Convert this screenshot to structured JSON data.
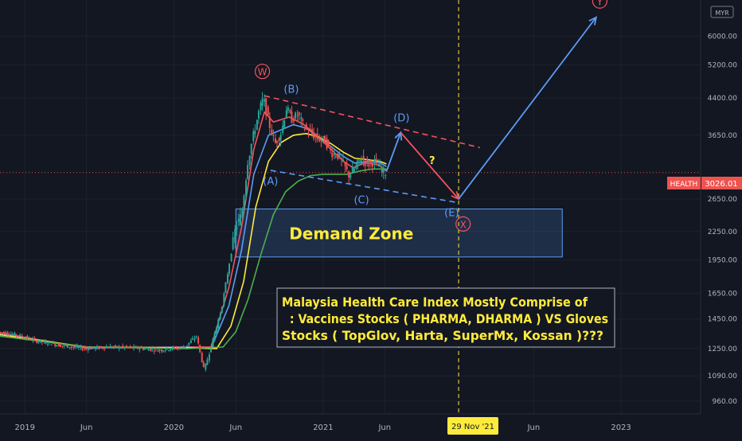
{
  "chart_data": {
    "type": "candlestick",
    "title": "",
    "currency_badge": "MYR",
    "symbol": "HEALTH",
    "last_price": "3026.01",
    "last_value": 3026.01,
    "y_scale": "log",
    "ylim": [
      900,
      7200
    ],
    "y_ticks": [
      {
        "value": 6000,
        "label": "6000.00"
      },
      {
        "value": 5200,
        "label": "5200.00"
      },
      {
        "value": 4400,
        "label": "4400.00"
      },
      {
        "value": 3650,
        "label": "3650.00"
      },
      {
        "value": 2650,
        "label": "2650.00"
      },
      {
        "value": 2250,
        "label": "2250.00"
      },
      {
        "value": 1950,
        "label": "1950.00"
      },
      {
        "value": 1650,
        "label": "1650.00"
      },
      {
        "value": 1450,
        "label": "1450.00"
      },
      {
        "value": 1250,
        "label": "1250.00"
      },
      {
        "value": 1090,
        "label": "1090.00"
      },
      {
        "value": 960,
        "label": "960.00"
      }
    ],
    "xlim": [
      "2018-11-01",
      "2023-07-15"
    ],
    "x_ticks": [
      {
        "date": "2019-01-01",
        "label": "2019"
      },
      {
        "date": "2019-06-01",
        "label": "Jun"
      },
      {
        "date": "2020-01-01",
        "label": "2020"
      },
      {
        "date": "2020-06-01",
        "label": "Jun"
      },
      {
        "date": "2021-01-01",
        "label": "2021"
      },
      {
        "date": "2021-06-01",
        "label": "Jun"
      },
      {
        "date": "2022-06-01",
        "label": "Jun"
      },
      {
        "date": "2023-01-01",
        "label": "2023"
      }
    ],
    "crosshair": {
      "date": "2021-11-29",
      "label": "29 Nov '21"
    },
    "price_path": [
      [
        "2018-11-01",
        1360
      ],
      [
        "2018-12-15",
        1340
      ],
      [
        "2019-02-01",
        1300
      ],
      [
        "2019-04-01",
        1270
      ],
      [
        "2019-06-01",
        1250
      ],
      [
        "2019-08-01",
        1260
      ],
      [
        "2019-10-01",
        1255
      ],
      [
        "2019-12-01",
        1240
      ],
      [
        "2020-02-01",
        1260
      ],
      [
        "2020-03-01",
        1330
      ],
      [
        "2020-03-20",
        1120
      ],
      [
        "2020-04-10",
        1300
      ],
      [
        "2020-05-01",
        1520
      ],
      [
        "2020-05-20",
        1900
      ],
      [
        "2020-06-05",
        2300
      ],
      [
        "2020-06-20",
        2450
      ],
      [
        "2020-07-05",
        3200
      ],
      [
        "2020-07-20",
        3700
      ],
      [
        "2020-08-01",
        4100
      ],
      [
        "2020-08-12",
        4400
      ],
      [
        "2020-08-25",
        3900
      ],
      [
        "2020-09-10",
        3500
      ],
      [
        "2020-09-25",
        3700
      ],
      [
        "2020-10-08",
        4200
      ],
      [
        "2020-10-20",
        3950
      ],
      [
        "2020-11-05",
        4050
      ],
      [
        "2020-11-20",
        3800
      ],
      [
        "2020-12-05",
        3700
      ],
      [
        "2020-12-20",
        3600
      ],
      [
        "2021-01-10",
        3550
      ],
      [
        "2021-01-25",
        3350
      ],
      [
        "2021-02-10",
        3300
      ],
      [
        "2021-02-25",
        3150
      ],
      [
        "2021-03-10",
        2980
      ],
      [
        "2021-03-25",
        3100
      ],
      [
        "2021-04-10",
        3250
      ],
      [
        "2021-04-25",
        3150
      ],
      [
        "2021-05-10",
        3200
      ],
      [
        "2021-05-25",
        3100
      ],
      [
        "2021-06-05",
        3026
      ]
    ],
    "series": [
      {
        "color": "#f7525f",
        "values": [
          [
            "2018-11-01",
            1350
          ],
          [
            "2019-06-01",
            1255
          ],
          [
            "2020-02-01",
            1260
          ],
          [
            "2020-04-01",
            1260
          ],
          [
            "2020-05-15",
            1700
          ],
          [
            "2020-06-15",
            2300
          ],
          [
            "2020-07-15",
            3400
          ],
          [
            "2020-08-10",
            4100
          ],
          [
            "2020-09-01",
            3900
          ],
          [
            "2020-10-10",
            4000
          ],
          [
            "2020-11-15",
            3850
          ],
          [
            "2020-12-15",
            3650
          ],
          [
            "2021-01-20",
            3400
          ],
          [
            "2021-02-20",
            3200
          ],
          [
            "2021-03-15",
            3100
          ],
          [
            "2021-04-15",
            3180
          ],
          [
            "2021-05-15",
            3150
          ],
          [
            "2021-06-05",
            3050
          ]
        ]
      },
      {
        "color": "#5b9cf6",
        "values": [
          [
            "2018-11-01",
            1345
          ],
          [
            "2019-06-01",
            1255
          ],
          [
            "2020-02-01",
            1258
          ],
          [
            "2020-04-01",
            1250
          ],
          [
            "2020-05-15",
            1550
          ],
          [
            "2020-06-15",
            2050
          ],
          [
            "2020-07-15",
            3000
          ],
          [
            "2020-08-20",
            3650
          ],
          [
            "2020-09-20",
            3750
          ],
          [
            "2020-10-20",
            3850
          ],
          [
            "2020-11-20",
            3780
          ],
          [
            "2020-12-20",
            3620
          ],
          [
            "2021-01-20",
            3450
          ],
          [
            "2021-02-20",
            3280
          ],
          [
            "2021-03-20",
            3170
          ],
          [
            "2021-04-20",
            3200
          ],
          [
            "2021-05-20",
            3180
          ],
          [
            "2021-06-05",
            3120
          ]
        ]
      },
      {
        "color": "#ffeb3b",
        "values": [
          [
            "2018-11-01",
            1340
          ],
          [
            "2019-06-01",
            1260
          ],
          [
            "2020-02-01",
            1255
          ],
          [
            "2020-04-15",
            1250
          ],
          [
            "2020-05-20",
            1400
          ],
          [
            "2020-06-20",
            1750
          ],
          [
            "2020-07-20",
            2550
          ],
          [
            "2020-08-20",
            3200
          ],
          [
            "2020-09-20",
            3520
          ],
          [
            "2020-10-20",
            3650
          ],
          [
            "2020-11-20",
            3680
          ],
          [
            "2020-12-20",
            3620
          ],
          [
            "2021-01-20",
            3500
          ],
          [
            "2021-02-20",
            3350
          ],
          [
            "2021-03-20",
            3250
          ],
          [
            "2021-04-20",
            3230
          ],
          [
            "2021-05-20",
            3200
          ],
          [
            "2021-06-05",
            3160
          ]
        ]
      },
      {
        "color": "#4caf50",
        "values": [
          [
            "2018-11-01",
            1330
          ],
          [
            "2019-06-01",
            1260
          ],
          [
            "2020-02-01",
            1250
          ],
          [
            "2020-05-01",
            1260
          ],
          [
            "2020-06-01",
            1360
          ],
          [
            "2020-07-01",
            1600
          ],
          [
            "2020-08-01",
            2000
          ],
          [
            "2020-09-01",
            2450
          ],
          [
            "2020-10-01",
            2750
          ],
          [
            "2020-11-01",
            2900
          ],
          [
            "2020-12-01",
            2980
          ],
          [
            "2021-01-01",
            3000
          ],
          [
            "2021-02-01",
            3000
          ],
          [
            "2021-03-01",
            3000
          ],
          [
            "2021-04-01",
            3050
          ],
          [
            "2021-05-01",
            3080
          ],
          [
            "2021-06-05",
            3080
          ]
        ]
      }
    ],
    "demand_zone": {
      "label": "Demand Zone",
      "x_from": "2020-06-01",
      "x_to": "2022-08-10",
      "y_from": 1980,
      "y_to": 2520
    },
    "trendlines": [
      {
        "kind": "resistance",
        "color": "#f7525f",
        "from": [
          "2020-08-10",
          4450
        ],
        "to": [
          "2022-01-20",
          3430
        ]
      },
      {
        "kind": "support",
        "color": "#5b9cf6",
        "from": [
          "2020-08-25",
          3060
        ],
        "to": [
          "2021-11-29",
          2600
        ]
      }
    ],
    "projection": [
      {
        "color": "#5b9cf6",
        "from": [
          "2021-06-05",
          3040
        ],
        "to": [
          "2021-07-10",
          3700
        ]
      },
      {
        "color": "#f7525f",
        "from": [
          "2021-07-10",
          3700
        ],
        "to": [
          "2021-11-29",
          2650
        ]
      },
      {
        "color": "#5b9cf6",
        "from": [
          "2021-11-29",
          2650
        ],
        "to": [
          "2022-11-01",
          6600
        ]
      }
    ],
    "wave_labels": [
      {
        "text": "W",
        "circled": true,
        "color": "#f7525f",
        "date": "2020-08-05",
        "price": 4950
      },
      {
        "text": "(B)",
        "circled": false,
        "color": "#5b9cf6",
        "date": "2020-10-15",
        "price": 4540
      },
      {
        "text": "(A)",
        "circled": false,
        "color": "#5b9cf6",
        "date": "2020-08-25",
        "price": 2860
      },
      {
        "text": "(C)",
        "circled": false,
        "color": "#5b9cf6",
        "date": "2021-04-05",
        "price": 2600
      },
      {
        "text": "(D)",
        "circled": false,
        "color": "#5b9cf6",
        "date": "2021-07-12",
        "price": 3930
      },
      {
        "text": "?",
        "circled": false,
        "color": "#ffeb3b",
        "date": "2021-09-25",
        "price": 3170
      },
      {
        "text": "(E)",
        "circled": false,
        "color": "#5b9cf6",
        "date": "2021-11-12",
        "price": 2440
      },
      {
        "text": "X",
        "circled": true,
        "color": "#f7525f",
        "date": "2021-12-10",
        "price": 2300
      },
      {
        "text": "Y",
        "circled": true,
        "color": "#f7525f",
        "date": "2022-11-10",
        "price": 7050
      }
    ],
    "annotation_lines": [
      "Malaysia Health Care Index Mostly Comprise of",
      "  : Vaccines Stocks ( PHARMA, DHARMA ) VS Gloves",
      "Stocks ( TopGlov, Harta, SuperMx, Kossan )???"
    ],
    "colors": {
      "background": "#131722",
      "grid": "#1e222d",
      "up": "#26a69a",
      "down": "#ef5350",
      "price_line": "#ef5350",
      "zone_border": "#5b9cf6",
      "zone_text": "#ffeb3b",
      "crosshair": "#ffeb3b"
    }
  }
}
